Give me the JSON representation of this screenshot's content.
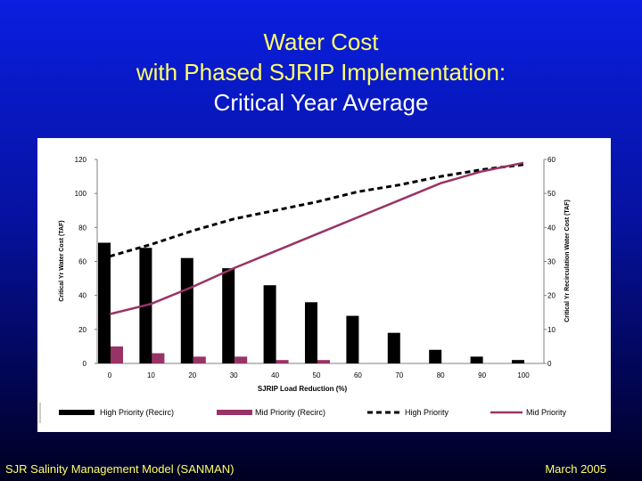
{
  "slide": {
    "title_line1": "Water Cost",
    "title_line2": "with Phased SJRIP Implementation:",
    "title_line3": "Critical Year Average",
    "footer_left": "SJR Salinity Management Model (SANMAN)",
    "footer_right": "March 2005"
  },
  "colors": {
    "title": "#ffff66",
    "title_line3": "#ffffff",
    "bar_high": "#000000",
    "bar_mid": "#993366",
    "line_high": "#000000",
    "line_mid": "#993366"
  },
  "chart_data": {
    "type": "bar",
    "title": "",
    "xlabel": "SJRIP Load Reduction (%)",
    "ylabel": "Critical Yr Water Cost (TAF)",
    "y2label": "Critical Yr Recirculation Water Cost (TAF)",
    "categories": [
      "0",
      "10",
      "20",
      "30",
      "40",
      "50",
      "60",
      "70",
      "80",
      "90",
      "100"
    ],
    "x": [
      0,
      10,
      20,
      30,
      40,
      50,
      60,
      70,
      80,
      90,
      100
    ],
    "ylim": [
      0,
      120
    ],
    "y2lim": [
      0,
      60
    ],
    "yticks": [
      0,
      20,
      40,
      60,
      80,
      100,
      120
    ],
    "y2ticks": [
      0,
      10,
      20,
      30,
      40,
      50,
      60
    ],
    "grid": false,
    "legend_position": "bottom",
    "series": [
      {
        "name": "High Priority (Recirc)",
        "kind": "bar",
        "axis": "right",
        "values": [
          35.5,
          34,
          31,
          28,
          23,
          18,
          14,
          9,
          4,
          2,
          1
        ]
      },
      {
        "name": "Mid Priority (Recirc)",
        "kind": "bar",
        "axis": "right",
        "values": [
          5,
          3,
          2,
          2,
          1,
          1,
          0,
          0,
          0,
          0,
          0
        ]
      },
      {
        "name": "High Priority",
        "kind": "line",
        "style": "dashed",
        "axis": "left",
        "values": [
          63,
          70,
          78,
          85,
          90,
          95,
          101,
          105,
          110,
          114,
          117
        ]
      },
      {
        "name": "Mid Priority",
        "kind": "line",
        "style": "solid",
        "axis": "left",
        "values": [
          29,
          35,
          45,
          56,
          66,
          76,
          86,
          96,
          106,
          113,
          118
        ]
      }
    ]
  }
}
